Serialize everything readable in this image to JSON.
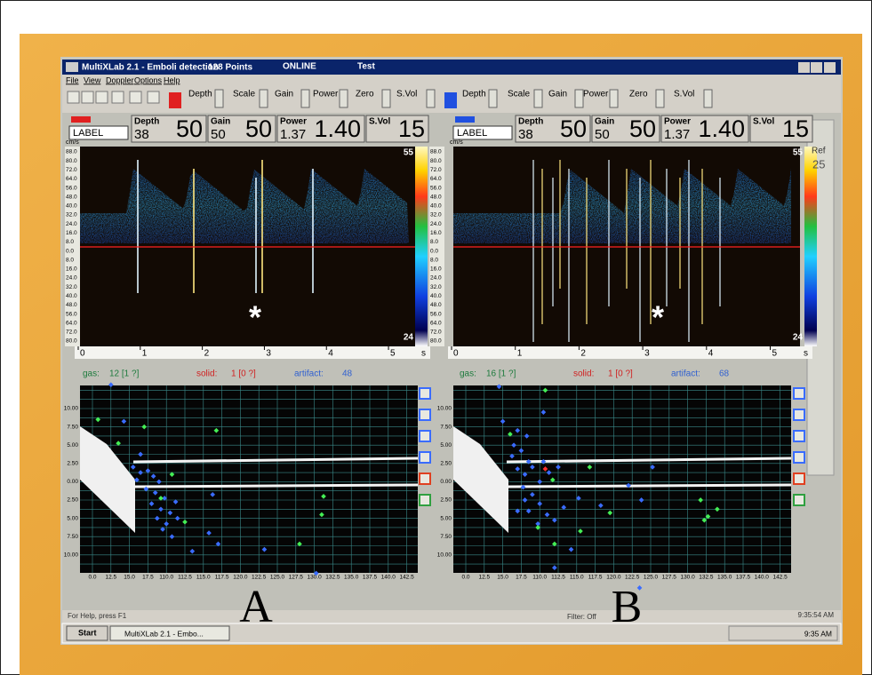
{
  "window": {
    "title": "MultiXLab 2.1 - Emboli detection",
    "points": "128 Points",
    "status": "ONLINE",
    "mode": "Test"
  },
  "menu": [
    "File",
    "View",
    "Doppler",
    "Options",
    "Help"
  ],
  "toolbar": {
    "left": [
      "Depth",
      "Scale",
      "Gain",
      "Power",
      "Zero",
      "S.Vol"
    ],
    "right": [
      "Depth",
      "Scale",
      "Gain",
      "Power",
      "Zero",
      "S.Vol"
    ]
  },
  "velocity_labels": [
    "88.0",
    "80.0",
    "72.0",
    "64.0",
    "56.0",
    "48.0",
    "40.0",
    "32.0",
    "24.0",
    "16.0",
    "8.0",
    "0.0",
    "8.0",
    "16.0",
    "24.0",
    "32.0",
    "40.0",
    "48.0",
    "56.0",
    "64.0",
    "72.0",
    "80.0"
  ],
  "side": {
    "ref": "Ref",
    "ref_value": "25"
  },
  "scatter_axes": {
    "yticks": [
      "10.00",
      "7.50",
      "5.00",
      "2.50",
      "0.00",
      "2.50",
      "5.00",
      "7.50",
      "10.00"
    ],
    "xticks": [
      "0.0",
      "12.5",
      "15.0",
      "17.5",
      "110.0",
      "112.5",
      "115.0",
      "117.5",
      "120.0",
      "122.5",
      "125.0",
      "127.5",
      "130.0",
      "132.5",
      "135.0",
      "137.5",
      "140.0",
      "142.5"
    ]
  },
  "event_colors": {
    "gas": "#44ee55",
    "solid": "#ff3030",
    "artifact": "#3a6cff"
  },
  "panels": [
    {
      "label": "LABEL",
      "unit": "cm/s",
      "params": [
        {
          "name": "Depth",
          "small": "38",
          "big": "50"
        },
        {
          "name": "Gain",
          "small": "50",
          "big": "50"
        },
        {
          "name": "Power",
          "small": "1.37",
          "big": "1.40"
        },
        {
          "name": "S.Vol",
          "big": "15"
        }
      ],
      "color_max": "55",
      "color_min": "24",
      "time_ticks": [
        "0",
        "1",
        "2",
        "3",
        "4",
        "5"
      ],
      "time_unit": "s",
      "counts": {
        "gas_label": "gas:",
        "gas": "12 [1 ?]",
        "solid_label": "solid:",
        "solid": "1 [0 ?]",
        "artifact_label": "artifact:",
        "artifact": "48"
      },
      "marker": "*",
      "letter": "A",
      "events": {
        "artifact": [
          [
            1,
            -1.3
          ],
          [
            1.7,
            0.7
          ],
          [
            2.6,
            2.5
          ],
          [
            2.2,
            3.2
          ],
          [
            2.6,
            3.5
          ],
          [
            3.0,
            3.4
          ],
          [
            3.3,
            3.7
          ],
          [
            3.6,
            4.0
          ],
          [
            2.9,
            4.4
          ],
          [
            3.4,
            4.6
          ],
          [
            3.9,
            4.9
          ],
          [
            3.2,
            5.2
          ],
          [
            3.7,
            5.5
          ],
          [
            4.2,
            5.7
          ],
          [
            3.5,
            6.0
          ],
          [
            4.0,
            6.3
          ],
          [
            4.6,
            6.0
          ],
          [
            3.8,
            6.6
          ],
          [
            4.3,
            7.0
          ],
          [
            5.4,
            7.8
          ],
          [
            6.3,
            6.8
          ],
          [
            6.8,
            7.4
          ],
          [
            9.3,
            7.7
          ],
          [
            12.1,
            9.0
          ],
          [
            2.4,
            3.9
          ],
          [
            4.5,
            5.1
          ],
          [
            6.5,
            4.7
          ]
        ],
        "gas": [
          [
            0.3,
            0.6
          ],
          [
            1.4,
            1.9
          ],
          [
            2.8,
            1.0
          ],
          [
            6.7,
            1.2
          ],
          [
            4.3,
            3.6
          ],
          [
            5.0,
            6.2
          ],
          [
            3.7,
            4.9
          ],
          [
            11.2,
            7.4
          ],
          [
            12.5,
            4.8
          ],
          [
            12.4,
            5.8
          ]
        ],
        "solid": []
      }
    },
    {
      "label": "LABEL",
      "unit": "cm/s",
      "params": [
        {
          "name": "Depth",
          "small": "38",
          "big": "50"
        },
        {
          "name": "Gain",
          "small": "50",
          "big": "50"
        },
        {
          "name": "Power",
          "small": "1.37",
          "big": "1.40"
        },
        {
          "name": "S.Vol",
          "big": "15"
        }
      ],
      "color_max": "55",
      "color_min": "24",
      "time_ticks": [
        "0",
        "1",
        "2",
        "3",
        "4",
        "5"
      ],
      "time_unit": "s",
      "counts": {
        "gas_label": "gas:",
        "gas": "16 [1 ?]",
        "solid_label": "solid:",
        "solid": "1 [0 ?]",
        "artifact_label": "artifact:",
        "artifact": "68"
      },
      "marker": "*",
      "letter": "B",
      "events": {
        "artifact": [
          [
            2,
            0.7
          ],
          [
            2.8,
            1.2
          ],
          [
            3.3,
            1.5
          ],
          [
            2.6,
            2.0
          ],
          [
            3.0,
            2.3
          ],
          [
            2.5,
            2.6
          ],
          [
            3.4,
            2.9
          ],
          [
            2.8,
            3.3
          ],
          [
            3.2,
            3.6
          ],
          [
            3.6,
            3.2
          ],
          [
            4.2,
            2.9
          ],
          [
            4.5,
            3.5
          ],
          [
            5.0,
            3.2
          ],
          [
            4.0,
            4.0
          ],
          [
            3.1,
            4.3
          ],
          [
            3.6,
            4.7
          ],
          [
            4.0,
            5.2
          ],
          [
            3.4,
            5.6
          ],
          [
            4.4,
            5.8
          ],
          [
            3.9,
            6.3
          ],
          [
            4.8,
            6.1
          ],
          [
            5.3,
            5.4
          ],
          [
            3.2,
            5.0
          ],
          [
            2.8,
            5.6
          ],
          [
            6.1,
            4.9
          ],
          [
            7.3,
            5.3
          ],
          [
            8.8,
            4.2
          ],
          [
            9.5,
            5.0
          ],
          [
            5.7,
            7.7
          ],
          [
            4.8,
            8.7
          ],
          [
            9.4,
            9.8
          ],
          [
            10.1,
            3.2
          ],
          [
            1.8,
            -1.2
          ],
          [
            4.2,
            0.2
          ]
        ],
        "gas": [
          [
            4.3,
            -1.0
          ],
          [
            2.4,
            1.4
          ],
          [
            6.7,
            3.2
          ],
          [
            4.7,
            3.9
          ],
          [
            7.8,
            5.7
          ],
          [
            6.2,
            6.7
          ],
          [
            4.8,
            7.4
          ],
          [
            12.7,
            5.0
          ],
          [
            13.1,
            5.9
          ],
          [
            13.6,
            5.5
          ],
          [
            12.9,
            6.1
          ],
          [
            3.9,
            6.5
          ]
        ],
        "solid": [
          [
            4.3,
            3.3
          ]
        ]
      }
    }
  ],
  "statusbar": {
    "help": "For Help, press F1",
    "filter": "Filter: Off",
    "time": "9:35:54 AM"
  },
  "taskbar": {
    "start": "Start",
    "app": "MultiXLab 2.1 - Embo...",
    "clock": "9:35 AM"
  }
}
